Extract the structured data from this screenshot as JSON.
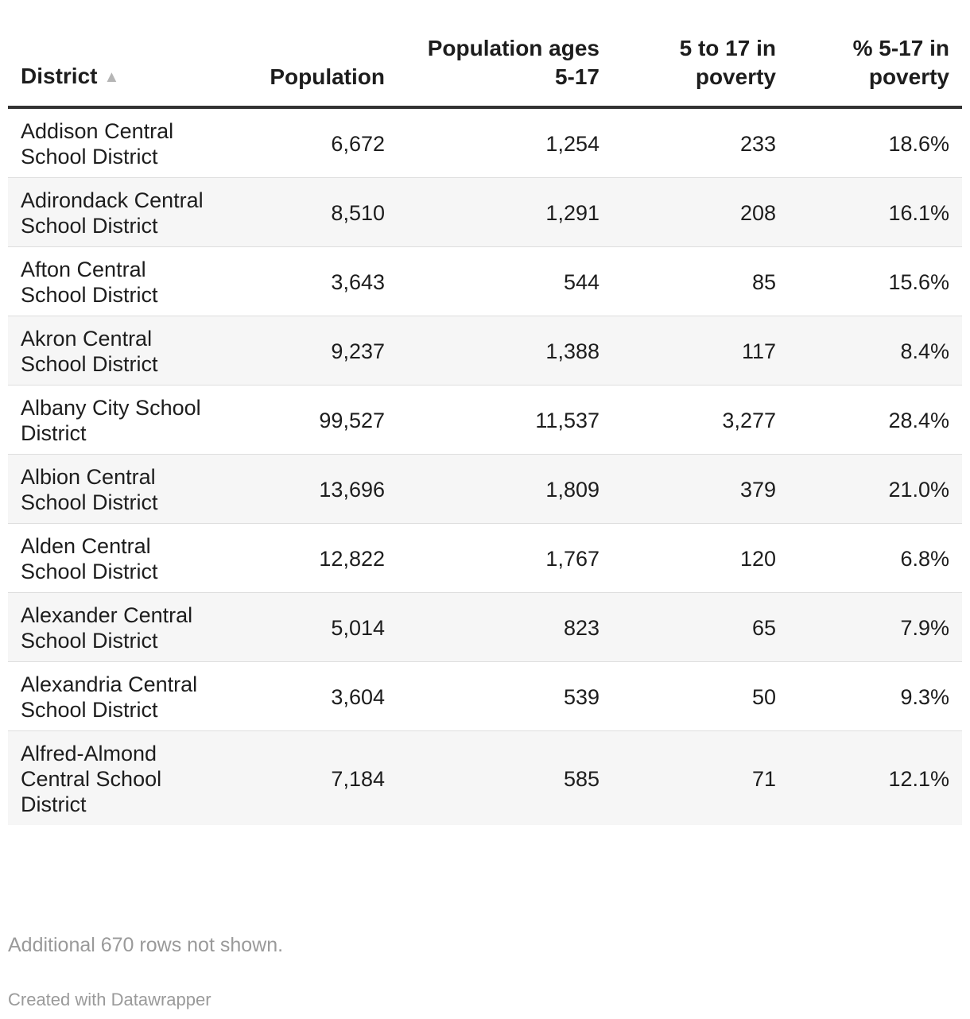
{
  "chart_data": {
    "type": "table",
    "columns": [
      "District",
      "Population",
      "Population ages 5-17",
      "5 to 17 in poverty",
      "% 5-17 in poverty"
    ],
    "sorted_column": "District",
    "sort_direction": "ascending",
    "sort_indicator": "▲",
    "rows": [
      {
        "district": "Addison Central School District",
        "population": "6,672",
        "ages_5_17": "1,254",
        "poverty_5_17": "233",
        "pct_poverty": "18.6%"
      },
      {
        "district": "Adirondack Central School District",
        "population": "8,510",
        "ages_5_17": "1,291",
        "poverty_5_17": "208",
        "pct_poverty": "16.1%"
      },
      {
        "district": "Afton Central School District",
        "population": "3,643",
        "ages_5_17": "544",
        "poverty_5_17": "85",
        "pct_poverty": "15.6%"
      },
      {
        "district": "Akron Central School District",
        "population": "9,237",
        "ages_5_17": "1,388",
        "poverty_5_17": "117",
        "pct_poverty": "8.4%"
      },
      {
        "district": "Albany City School District",
        "population": "99,527",
        "ages_5_17": "11,537",
        "poverty_5_17": "3,277",
        "pct_poverty": "28.4%"
      },
      {
        "district": "Albion Central School District",
        "population": "13,696",
        "ages_5_17": "1,809",
        "poverty_5_17": "379",
        "pct_poverty": "21.0%"
      },
      {
        "district": "Alden Central School District",
        "population": "12,822",
        "ages_5_17": "1,767",
        "poverty_5_17": "120",
        "pct_poverty": "6.8%"
      },
      {
        "district": "Alexander Central School District",
        "population": "5,014",
        "ages_5_17": "823",
        "poverty_5_17": "65",
        "pct_poverty": "7.9%"
      },
      {
        "district": "Alexandria Central School District",
        "population": "3,604",
        "ages_5_17": "539",
        "poverty_5_17": "50",
        "pct_poverty": "9.3%"
      },
      {
        "district": "Alfred-Almond Central School District",
        "population": "7,184",
        "ages_5_17": "585",
        "poverty_5_17": "71",
        "pct_poverty": "12.1%"
      }
    ],
    "footer_note": "Additional 670 rows not shown.",
    "credit": "Created with Datawrapper"
  }
}
